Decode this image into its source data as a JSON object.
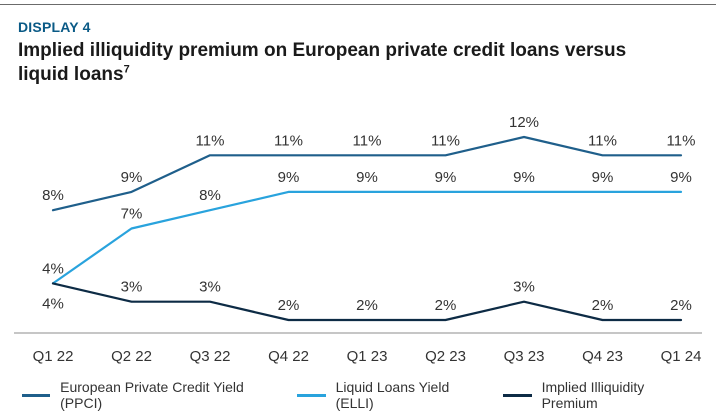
{
  "header": {
    "display_label": "DISPLAY 4",
    "title": "Implied illiquidity premium on European private credit loans versus liquid loans",
    "title_footnote": "7"
  },
  "chart_data": {
    "type": "line",
    "title": "Implied illiquidity premium on European private credit loans versus liquid loans",
    "xlabel": "",
    "ylabel": "",
    "ylim": [
      0,
      13
    ],
    "grid": false,
    "legend_position": "bottom",
    "categories": [
      "Q1 22",
      "Q2 22",
      "Q3 22",
      "Q4 22",
      "Q1 23",
      "Q2 23",
      "Q3 23",
      "Q4 23",
      "Q1 24"
    ],
    "series": [
      {
        "name": "European Private Credit Yield (PPCI)",
        "color": "#1f5f8b",
        "values": [
          8,
          9,
          11,
          11,
          11,
          11,
          12,
          11,
          11
        ],
        "labels": [
          "8%",
          "9%",
          "11%",
          "11%",
          "11%",
          "11%",
          "12%",
          "11%",
          "11%"
        ],
        "label_position": "above"
      },
      {
        "name": "Liquid Loans Yield (ELLI)",
        "color": "#29a3dd",
        "values": [
          4,
          7,
          8,
          9,
          9,
          9,
          9,
          9,
          9
        ],
        "labels": [
          "4%",
          "7%",
          "8%",
          "9%",
          "9%",
          "9%",
          "9%",
          "9%",
          "9%"
        ],
        "label_position": "above"
      },
      {
        "name": "Implied Illiquidity Premium",
        "color": "#0d2b45",
        "values": [
          4,
          3,
          3,
          2,
          2,
          2,
          3,
          2,
          2
        ],
        "labels": [
          "4%",
          "3%",
          "3%",
          "2%",
          "2%",
          "2%",
          "3%",
          "2%",
          "2%"
        ],
        "label_position": "above_first_below"
      }
    ]
  }
}
